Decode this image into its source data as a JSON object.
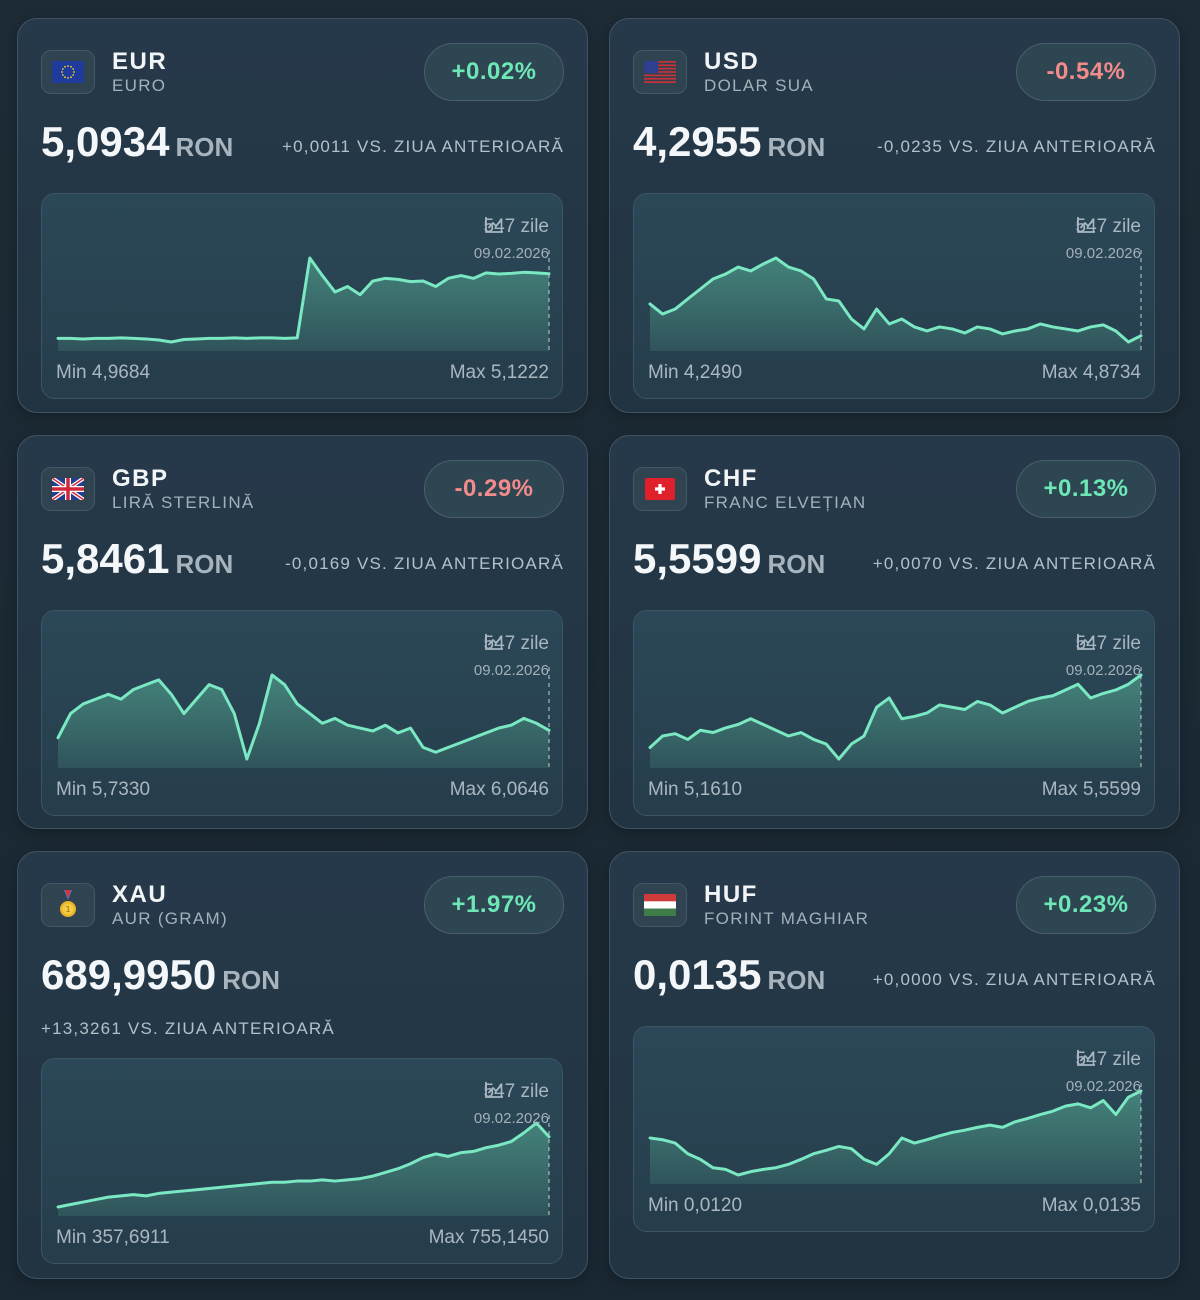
{
  "cards": [
    {
      "code": "EUR",
      "name": "EURO",
      "change": "+0.02%",
      "positive": true,
      "price": "5,0934",
      "unit": "RON",
      "delta": "+0,0011 VS. ZIUA ANTERIOARĂ",
      "period": "547 zile",
      "date": "09.02.2026",
      "min_label": "Min 4,9684",
      "max_label": "Max 5,1222",
      "ylim": [
        4.9684,
        5.1222
      ],
      "values": [
        4.975,
        4.975,
        4.974,
        4.975,
        4.975,
        4.976,
        4.975,
        4.974,
        4.972,
        4.9684,
        4.973,
        4.974,
        4.975,
        4.975,
        4.976,
        4.975,
        4.976,
        4.976,
        4.975,
        4.976,
        5.1222,
        5.09,
        5.06,
        5.07,
        5.055,
        5.08,
        5.085,
        5.083,
        5.079,
        5.08,
        5.07,
        5.085,
        5.09,
        5.085,
        5.095,
        5.093,
        5.094,
        5.096,
        5.095,
        5.0934
      ]
    },
    {
      "code": "USD",
      "name": "DOLAR SUA",
      "change": "-0.54%",
      "positive": false,
      "price": "4,2955",
      "unit": "RON",
      "delta": "-0,0235 VS. ZIUA ANTERIOARĂ",
      "period": "547 zile",
      "date": "09.02.2026",
      "min_label": "Min 4,2490",
      "max_label": "Max 4,8734",
      "ylim": [
        4.249,
        4.8734
      ],
      "values": [
        4.532,
        4.457,
        4.494,
        4.569,
        4.643,
        4.717,
        4.754,
        4.806,
        4.777,
        4.829,
        4.8734,
        4.806,
        4.777,
        4.717,
        4.569,
        4.554,
        4.42,
        4.346,
        4.494,
        4.383,
        4.42,
        4.361,
        4.331,
        4.361,
        4.346,
        4.316,
        4.361,
        4.346,
        4.309,
        4.331,
        4.346,
        4.383,
        4.361,
        4.346,
        4.331,
        4.361,
        4.376,
        4.331,
        4.249,
        4.2955
      ]
    },
    {
      "code": "GBP",
      "name": "LIRĂ STERLINĂ",
      "change": "-0.29%",
      "positive": false,
      "price": "5,8461",
      "unit": "RON",
      "delta": "-0,0169 VS. ZIUA ANTERIOARĂ",
      "period": "547 zile",
      "date": "09.02.2026",
      "min_label": "Min 5,7330",
      "max_label": "Max 6,0646",
      "ylim": [
        5.733,
        6.0646
      ],
      "values": [
        5.8169,
        5.9122,
        5.9503,
        5.9693,
        5.9884,
        5.9693,
        6.0074,
        6.0265,
        6.0455,
        5.9884,
        5.9122,
        5.9693,
        6.0265,
        6.0074,
        5.9122,
        5.733,
        5.874,
        6.0646,
        6.0265,
        5.9503,
        5.9122,
        5.874,
        5.8931,
        5.8664,
        5.855,
        5.8436,
        5.8664,
        5.8359,
        5.855,
        5.7788,
        5.7597,
        5.7788,
        5.7978,
        5.8169,
        5.8359,
        5.855,
        5.8664,
        5.8931,
        5.874,
        5.8461
      ]
    },
    {
      "code": "CHF",
      "name": "FRANC ELVEȚIAN",
      "change": "+0.13%",
      "positive": true,
      "price": "5,5599",
      "unit": "RON",
      "delta": "+0,0070 VS. ZIUA ANTERIOARĂ",
      "period": "547 zile",
      "date": "09.02.2026",
      "min_label": "Min 5,1610",
      "max_label": "Max 5,5599",
      "ylim": [
        5.161,
        5.5599
      ],
      "values": [
        5.2157,
        5.2703,
        5.2812,
        5.2539,
        5.2976,
        5.2867,
        5.3086,
        5.3249,
        5.3523,
        5.3249,
        5.2976,
        5.2703,
        5.2867,
        5.2539,
        5.2321,
        5.161,
        5.2321,
        5.2703,
        5.4069,
        5.4506,
        5.3523,
        5.3632,
        5.3796,
        5.4178,
        5.4069,
        5.396,
        5.4342,
        5.4178,
        5.3796,
        5.4069,
        5.4342,
        5.4506,
        5.4615,
        5.4889,
        5.5162,
        5.4506,
        5.4725,
        5.4889,
        5.5162,
        5.5599
      ]
    },
    {
      "code": "XAU",
      "name": "AUR (GRAM)",
      "change": "+1.97%",
      "positive": true,
      "price": "689,9950",
      "unit": "RON",
      "delta": "+13,3261 VS. ZIUA ANTERIOARĂ",
      "period": "547 zile",
      "date": "09.02.2026",
      "min_label": "Min 357,6911",
      "max_label": "Max 755,1450",
      "ylim": [
        357.6911,
        755.145
      ],
      "values": [
        357.6911,
        369.38,
        381.07,
        392.76,
        404.45,
        410.29,
        416.14,
        410.29,
        421.98,
        427.83,
        433.67,
        439.52,
        445.36,
        451.21,
        457.05,
        462.9,
        468.74,
        474.59,
        474.59,
        480.43,
        480.43,
        486.28,
        480.43,
        486.28,
        492.12,
        503.81,
        521.35,
        538.88,
        562.26,
        591.49,
        609.02,
        597.33,
        614.87,
        620.71,
        638.25,
        649.94,
        667.47,
        708.39,
        755.145,
        689.995
      ]
    },
    {
      "code": "HUF",
      "name": "FORINT MAGHIAR",
      "change": "+0.23%",
      "positive": true,
      "price": "0,0135",
      "unit": "RON",
      "delta": "+0,0000 VS. ZIUA ANTERIOARĂ",
      "period": "547 zile",
      "date": "09.02.2026",
      "min_label": "Min 0,0120",
      "max_label": "Max 0,0135",
      "ylim": [
        0.012,
        0.0135
      ],
      "values": [
        0.01266,
        0.01263,
        0.01257,
        0.01238,
        0.01228,
        0.01213,
        0.0121,
        0.012,
        0.01206,
        0.0121,
        0.01213,
        0.01219,
        0.01228,
        0.01238,
        0.01244,
        0.01251,
        0.01247,
        0.01228,
        0.01219,
        0.01238,
        0.01266,
        0.01257,
        0.01263,
        0.0127,
        0.01276,
        0.0128,
        0.01285,
        0.01289,
        0.01285,
        0.01295,
        0.01301,
        0.01308,
        0.01314,
        0.01323,
        0.01327,
        0.0132,
        0.01333,
        0.01308,
        0.01339,
        0.0135
      ]
    }
  ]
}
